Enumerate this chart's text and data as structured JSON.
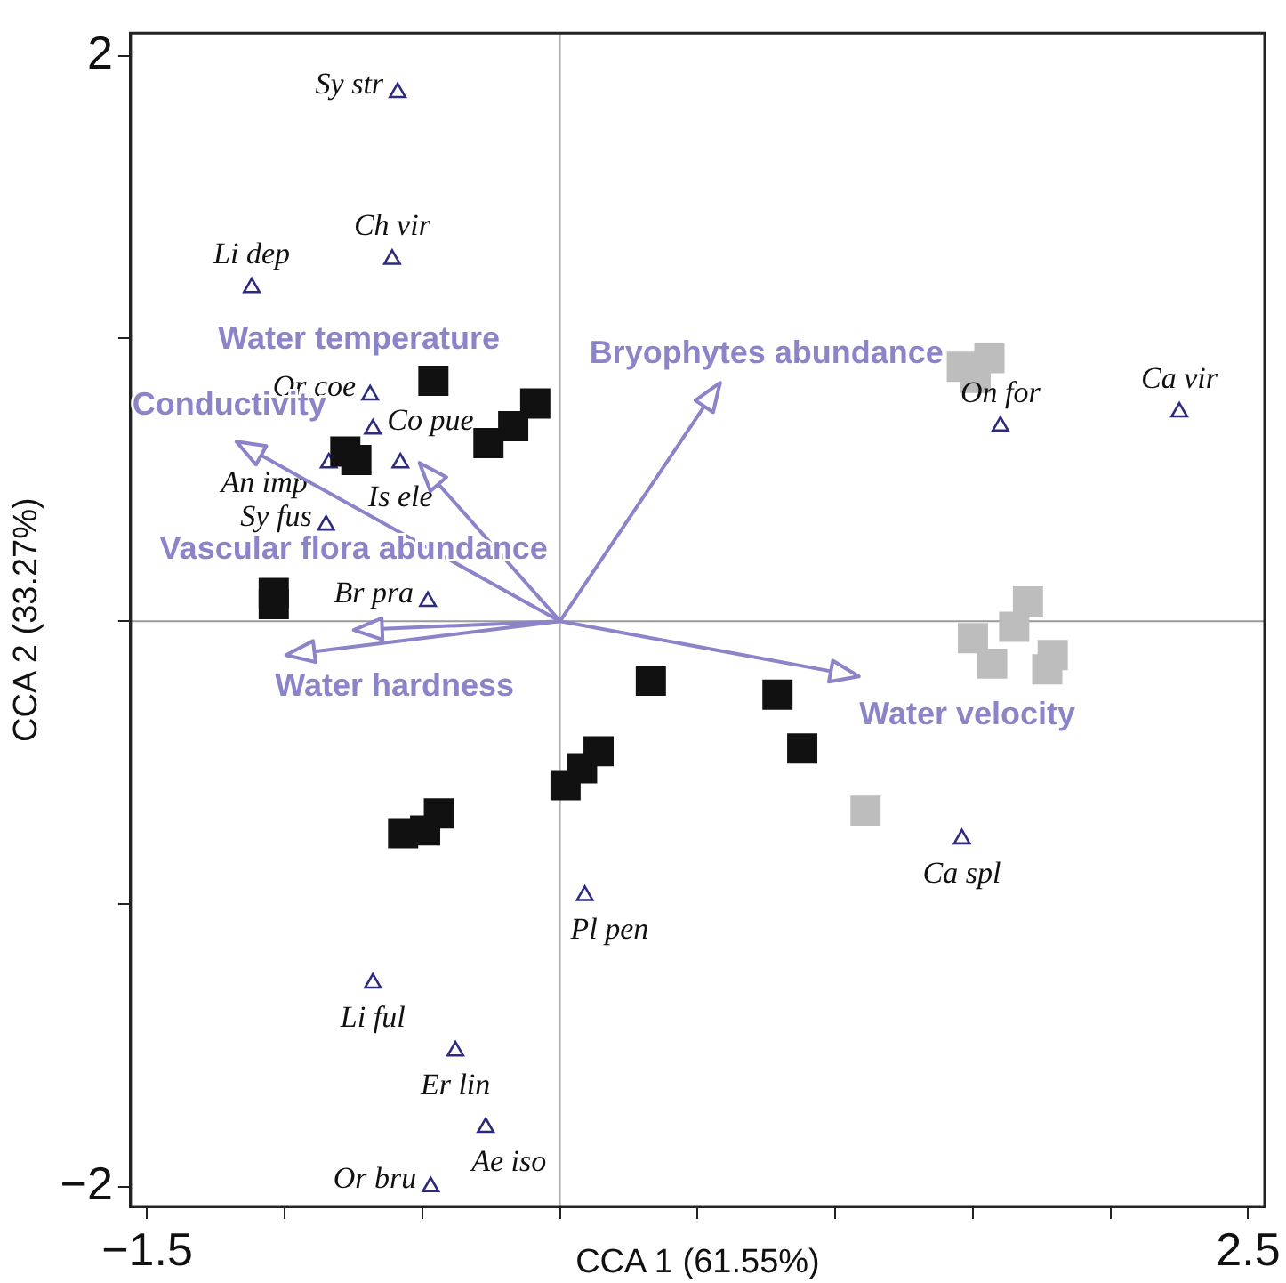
{
  "chart_data": {
    "type": "scatter",
    "xlabel": "CCA 1 (61.55%)",
    "ylabel": "CCA 2 (33.27%)",
    "xlim": [
      -1.56,
      2.56
    ],
    "ylim": [
      -2.07,
      2.08
    ],
    "xticks": [
      {
        "value": -1.5,
        "label": "−1.5"
      },
      {
        "value": -1,
        "label": null
      },
      {
        "value": -0.5,
        "label": null
      },
      {
        "value": 0,
        "label": null
      },
      {
        "value": 0.5,
        "label": null
      },
      {
        "value": 1,
        "label": null
      },
      {
        "value": 1.5,
        "label": null
      },
      {
        "value": 2,
        "label": null
      },
      2.5
    ],
    "yticks": [
      {
        "value": -2,
        "label": "−2"
      },
      {
        "value": -1,
        "label": null
      },
      {
        "value": 0,
        "label": null
      },
      {
        "value": 1,
        "label": null
      },
      2
    ],
    "ref_lines": [
      {
        "axis": "x",
        "value": 0,
        "color": "#b4b4b4"
      },
      {
        "axis": "y",
        "value": 0,
        "color": "#9a9a9a"
      }
    ],
    "series": [
      {
        "marker": "square",
        "color": "#111111",
        "x": [
          -0.46,
          -0.09,
          -0.17,
          -0.26,
          -0.78,
          -0.74,
          -1.04,
          -1.04,
          0.33,
          0.79,
          0.88,
          0.14,
          0.08,
          0.02,
          -0.44,
          -0.49,
          -0.57
        ],
        "values": [
          0.85,
          0.77,
          0.69,
          0.63,
          0.6,
          0.57,
          0.1,
          0.06,
          -0.21,
          -0.26,
          -0.45,
          -0.46,
          -0.52,
          -0.58,
          -0.68,
          -0.74,
          -0.75
        ]
      },
      {
        "marker": "square",
        "color": "#bdbdbd",
        "x": [
          1.56,
          1.46,
          1.51,
          1.7,
          1.65,
          1.5,
          1.57,
          1.79,
          1.77,
          1.11
        ],
        "values": [
          0.93,
          0.9,
          0.86,
          0.07,
          -0.02,
          -0.06,
          -0.15,
          -0.12,
          -0.17,
          -0.67
        ]
      },
      {
        "name": "Sy str",
        "marker": "triangle",
        "color": "#2e2a80",
        "x": [
          -0.59
        ],
        "values": [
          1.87
        ]
      },
      {
        "name": "Ch vir",
        "marker": "triangle",
        "color": "#2e2a80",
        "x": [
          -0.61
        ],
        "values": [
          1.28
        ]
      },
      {
        "name": "Li dep",
        "marker": "triangle",
        "color": "#2e2a80",
        "x": [
          -1.12
        ],
        "values": [
          1.18
        ]
      },
      {
        "name": "Or coe",
        "marker": "triangle",
        "color": "#2e2a80",
        "x": [
          -0.69
        ],
        "values": [
          0.8
        ]
      },
      {
        "name": "Co pue",
        "marker": "triangle",
        "color": "#2e2a80",
        "x": [
          -0.68
        ],
        "values": [
          0.68
        ]
      },
      {
        "name": "An imp",
        "marker": "triangle",
        "color": "#2e2a80",
        "x": [
          -0.84
        ],
        "values": [
          0.56
        ]
      },
      {
        "name": "Is ele",
        "marker": "triangle",
        "color": "#2e2a80",
        "x": [
          -0.58
        ],
        "values": [
          0.56
        ]
      },
      {
        "name": "Sy fus",
        "marker": "triangle",
        "color": "#2e2a80",
        "x": [
          -0.85
        ],
        "values": [
          0.34
        ]
      },
      {
        "name": "Br pra",
        "marker": "triangle",
        "color": "#2e2a80",
        "x": [
          -0.48
        ],
        "values": [
          0.07
        ]
      },
      {
        "name": "On for",
        "marker": "triangle",
        "color": "#2e2a80",
        "x": [
          1.6
        ],
        "values": [
          0.69
        ]
      },
      {
        "name": "Ca vir",
        "marker": "triangle",
        "color": "#2e2a80",
        "x": [
          2.25
        ],
        "values": [
          0.74
        ]
      },
      {
        "name": "Ca spl",
        "marker": "triangle",
        "color": "#2e2a80",
        "x": [
          1.46
        ],
        "values": [
          -0.77
        ]
      },
      {
        "name": "Pl pen",
        "marker": "triangle",
        "color": "#2e2a80",
        "x": [
          0.09
        ],
        "values": [
          -0.97
        ]
      },
      {
        "name": "Li ful",
        "marker": "triangle",
        "color": "#2e2a80",
        "x": [
          -0.68
        ],
        "values": [
          -1.28
        ]
      },
      {
        "name": "Er lin",
        "marker": "triangle",
        "color": "#2e2a80",
        "x": [
          -0.38
        ],
        "values": [
          -1.52
        ]
      },
      {
        "name": "Ae iso",
        "marker": "triangle",
        "color": "#2e2a80",
        "x": [
          -0.27
        ],
        "values": [
          -1.79
        ]
      },
      {
        "name": "Or bru",
        "marker": "triangle",
        "color": "#2e2a80",
        "x": [
          -0.47
        ],
        "values": [
          -2.0
        ]
      }
    ],
    "annotations": [
      "Conductivity",
      "Water temperature",
      "Bryophytes abundance",
      "Water velocity",
      "Vascular flora abundance",
      "Water hardness"
    ]
  }
}
